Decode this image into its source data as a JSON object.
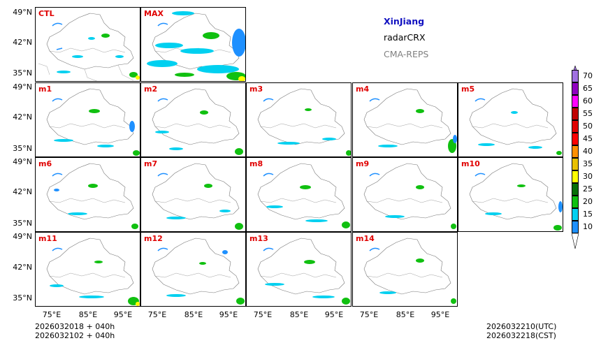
{
  "info": {
    "region": "XinJiang",
    "product": "radarCRX",
    "model": "CMA-REPS"
  },
  "panels": [
    "CTL",
    "MAX",
    "m1",
    "m2",
    "m3",
    "m4",
    "m5",
    "m6",
    "m7",
    "m8",
    "m9",
    "m10",
    "m11",
    "m12",
    "m13",
    "m14"
  ],
  "lat_ticks": [
    "49°N",
    "42°N",
    "35°N"
  ],
  "lon_ticks": [
    "75°E",
    "85°E",
    "95°E"
  ],
  "footer": {
    "left_line1": "2026032018  +  040h",
    "left_line2": "2026032102  +  040h",
    "right_line1": "2026032210(UTC)",
    "right_line2": "2026032218(CST)"
  },
  "colorbar": {
    "levels": [
      "10",
      "15",
      "20",
      "25",
      "30",
      "35",
      "40",
      "45",
      "50",
      "55",
      "60",
      "65",
      "70"
    ],
    "colors": [
      "#1e90ff",
      "#00d0f0",
      "#10c010",
      "#087008",
      "#ffff00",
      "#e8c000",
      "#ff9000",
      "#ff0000",
      "#e00000",
      "#c00000",
      "#ff00ff",
      "#9000c0",
      "#a070e0"
    ]
  }
}
